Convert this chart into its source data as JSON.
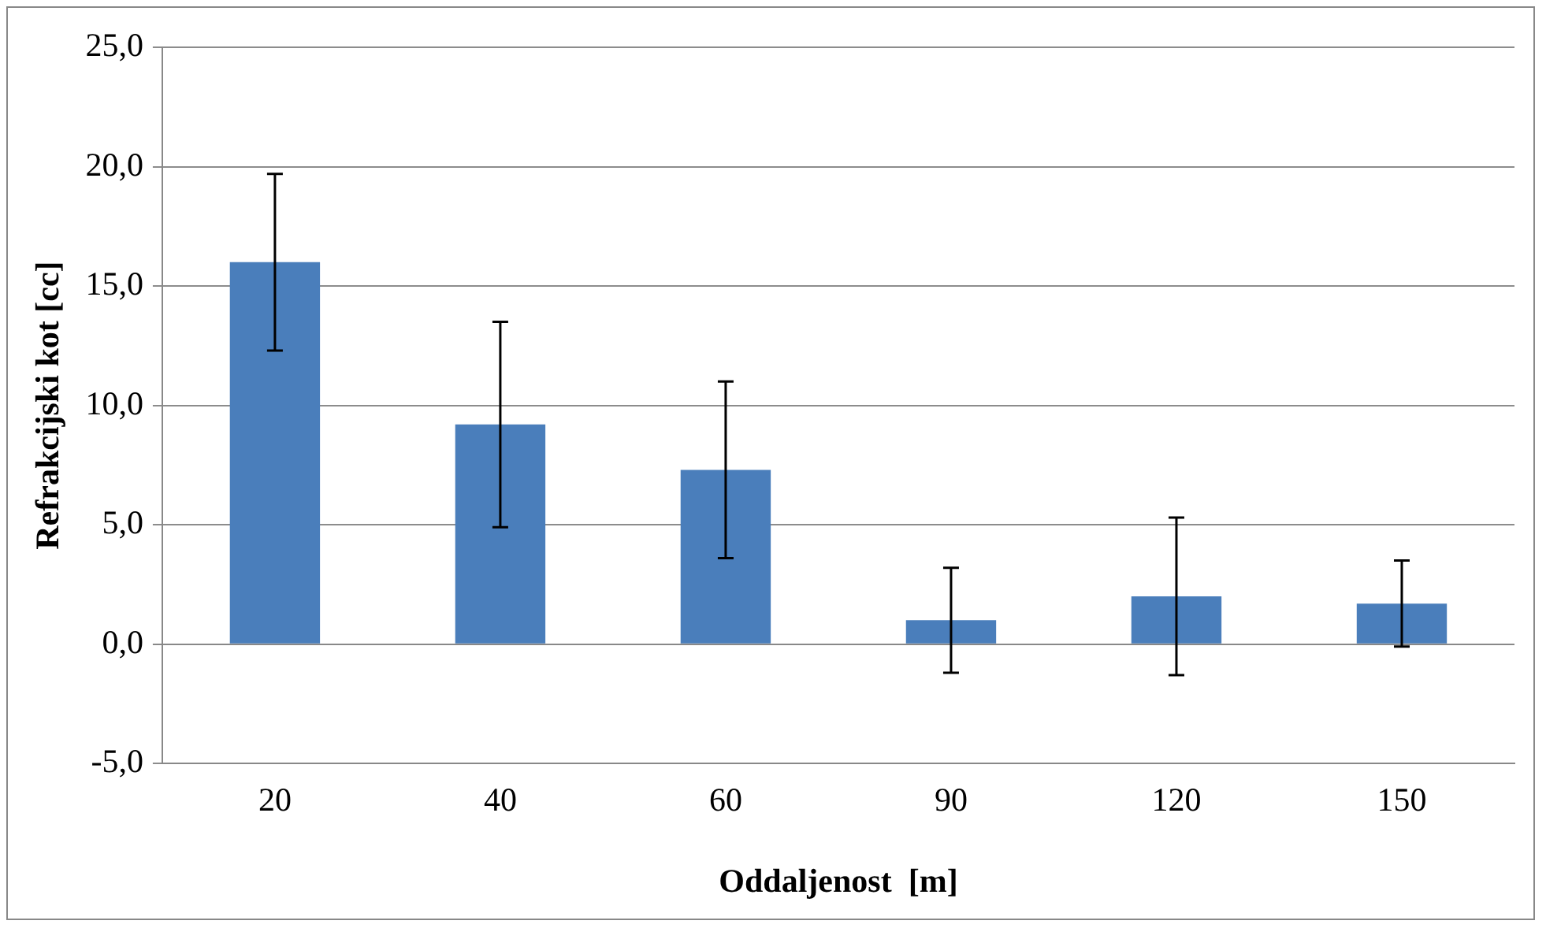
{
  "chart_data": {
    "type": "bar",
    "xlabel": "Oddaljenost  [m]",
    "ylabel": "Refrakcijski kot [cc]",
    "categories": [
      "20",
      "40",
      "60",
      "90",
      "120",
      "150"
    ],
    "values": [
      16.0,
      9.2,
      7.3,
      1.0,
      2.0,
      1.7
    ],
    "errors": [
      3.7,
      4.3,
      3.7,
      2.2,
      3.3,
      1.8
    ],
    "color": "#4a7ebb",
    "ylim": [
      -5,
      25
    ],
    "yticks": [
      {
        "value": -5,
        "label": "-5,0"
      },
      {
        "value": 0,
        "label": "0,0"
      },
      {
        "value": 5,
        "label": "5,0"
      },
      {
        "value": 10,
        "label": "10,0"
      },
      {
        "value": 15,
        "label": "15,0"
      },
      {
        "value": 20,
        "label": "20,0"
      },
      {
        "value": 25,
        "label": "25,0"
      }
    ],
    "grid": "y",
    "legend": false
  }
}
